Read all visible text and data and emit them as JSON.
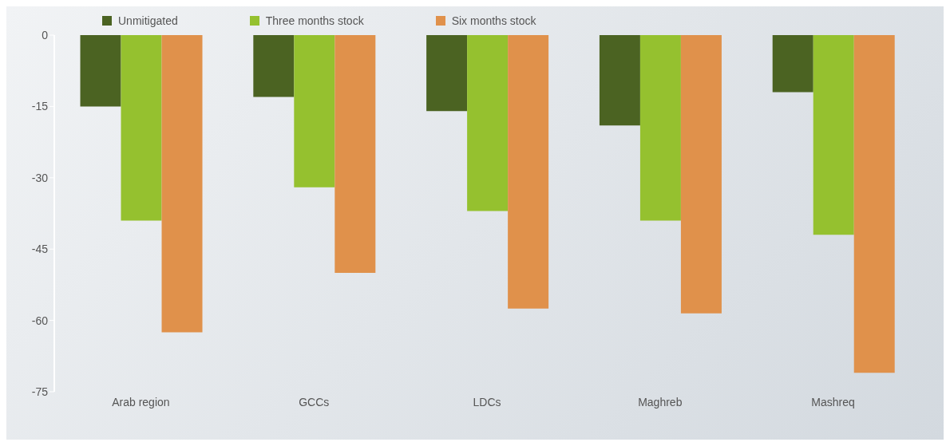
{
  "chart_data": {
    "type": "bar",
    "categories": [
      "Arab region",
      "GCCs",
      "LDCs",
      "Maghreb",
      "Mashreq"
    ],
    "series": [
      {
        "name": "Unmitigated",
        "color": "#4b6322",
        "values": [
          -15,
          -13,
          -16,
          -19,
          -12
        ]
      },
      {
        "name": "Three months stock",
        "color": "#95c12f",
        "values": [
          -39,
          -32,
          -37,
          -39,
          -42
        ]
      },
      {
        "name": "Six months stock",
        "color": "#e0914b",
        "values": [
          -62.5,
          -50,
          -57.5,
          -58.5,
          -71
        ]
      }
    ],
    "ylim": [
      -75,
      0
    ],
    "yticks": [
      0,
      -15,
      -30,
      -45,
      -60,
      -75
    ],
    "legend": "top left"
  }
}
